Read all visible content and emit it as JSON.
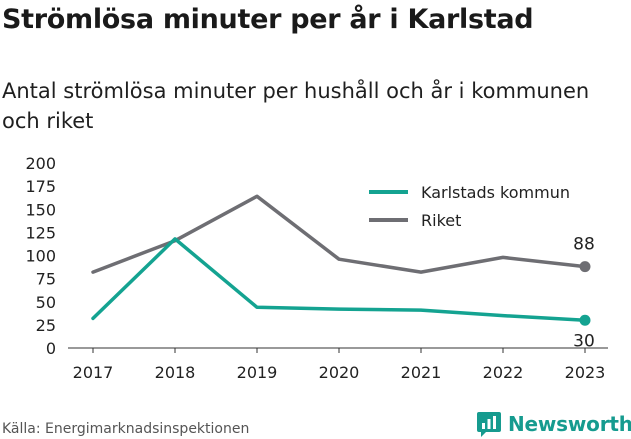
{
  "header": {
    "title": "Strömlösa minuter per år i Karlstad",
    "subtitle": "Antal strömlösa minuter per hushåll och år i kommunen och riket"
  },
  "footer": {
    "source": "Källa: Energimarknadsinspektionen",
    "brand": "Newsworthy",
    "brand_color": "#169b8f",
    "brand_icon": "bar-chart-icon"
  },
  "chart_data": {
    "type": "line",
    "title": "Strömlösa minuter per år i Karlstad",
    "subtitle": "Antal strömlösa minuter per hushåll och år i kommunen och riket",
    "xlabel": "",
    "ylabel": "",
    "categories": [
      "2017",
      "2018",
      "2019",
      "2020",
      "2021",
      "2022",
      "2023"
    ],
    "ylim": [
      0,
      200
    ],
    "yticks": [
      0,
      25,
      50,
      75,
      100,
      125,
      150,
      175,
      200
    ],
    "grid": false,
    "legend_position": "top-right",
    "series": [
      {
        "name": "Karlstads kommun",
        "color": "#14a391",
        "values": [
          32,
          118,
          44,
          42,
          41,
          35,
          30
        ],
        "end_label": "30"
      },
      {
        "name": "Riket",
        "color": "#6e6e73",
        "values": [
          82,
          116,
          164,
          96,
          82,
          98,
          88
        ],
        "end_label": "88"
      }
    ]
  }
}
